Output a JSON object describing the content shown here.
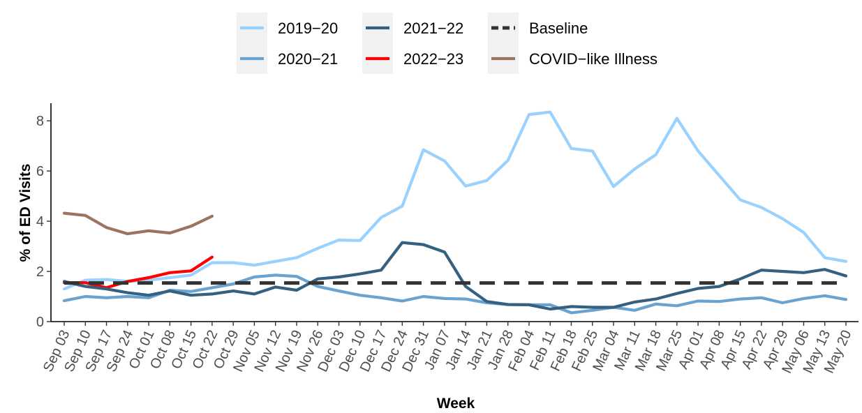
{
  "chart_data": {
    "type": "line",
    "xlabel": "Week",
    "ylabel": "% of ED Visits",
    "ylim": [
      0,
      8.7
    ],
    "yticks": [
      0,
      2,
      4,
      6,
      8
    ],
    "grid": false,
    "legend_position": "top",
    "categories": [
      "Sep 03",
      "Sep 10",
      "Sep 17",
      "Sep 24",
      "Oct 01",
      "Oct 08",
      "Oct 15",
      "Oct 22",
      "Oct 29",
      "Nov 05",
      "Nov 12",
      "Nov 19",
      "Nov 26",
      "Dec 03",
      "Dec 10",
      "Dec 17",
      "Dec 24",
      "Dec 31",
      "Jan 07",
      "Jan 14",
      "Jan 21",
      "Jan 28",
      "Feb 04",
      "Feb 11",
      "Feb 18",
      "Feb 25",
      "Mar 04",
      "Mar 11",
      "Mar 18",
      "Mar 25",
      "Apr 01",
      "Apr 08",
      "Apr 15",
      "Apr 22",
      "Apr 29",
      "May 06",
      "May 13",
      "May 20"
    ],
    "series": [
      {
        "name": "2019−20",
        "color": "#99d1ff",
        "dashed": false,
        "values": [
          1.3,
          1.65,
          1.68,
          1.6,
          1.65,
          1.75,
          1.85,
          2.35,
          2.35,
          2.25,
          2.4,
          2.55,
          2.92,
          3.25,
          3.23,
          4.15,
          4.6,
          6.85,
          6.4,
          5.4,
          5.62,
          6.42,
          8.25,
          8.35,
          6.9,
          6.8,
          5.38,
          6.08,
          6.65,
          8.1,
          6.8,
          5.82,
          4.85,
          4.55,
          4.1,
          3.55,
          2.55,
          2.4
        ]
      },
      {
        "name": "2020−21",
        "color": "#6aa2d0",
        "dashed": false,
        "values": [
          0.83,
          1.0,
          0.95,
          1.0,
          0.95,
          1.25,
          1.2,
          1.35,
          1.5,
          1.78,
          1.85,
          1.8,
          1.4,
          1.22,
          1.05,
          0.95,
          0.82,
          1.0,
          0.92,
          0.9,
          0.75,
          0.68,
          0.67,
          0.67,
          0.35,
          0.45,
          0.57,
          0.45,
          0.7,
          0.63,
          0.82,
          0.8,
          0.9,
          0.95,
          0.75,
          0.92,
          1.03,
          0.88
        ]
      },
      {
        "name": "2021−22",
        "color": "#36607f",
        "dashed": false,
        "values": [
          1.6,
          1.4,
          1.3,
          1.15,
          1.05,
          1.22,
          1.05,
          1.1,
          1.22,
          1.1,
          1.38,
          1.25,
          1.7,
          1.78,
          1.9,
          2.05,
          3.15,
          3.07,
          2.77,
          1.4,
          0.8,
          0.68,
          0.67,
          0.5,
          0.6,
          0.57,
          0.57,
          0.78,
          0.9,
          1.12,
          1.32,
          1.4,
          1.7,
          2.05,
          2.0,
          1.95,
          2.08,
          1.82
        ]
      },
      {
        "name": "2022−23",
        "color": "#ff0000",
        "dashed": false,
        "values": [
          1.55,
          1.55,
          1.35,
          1.6,
          1.75,
          1.95,
          2.02,
          2.57,
          null,
          null,
          null,
          null,
          null,
          null,
          null,
          null,
          null,
          null,
          null,
          null,
          null,
          null,
          null,
          null,
          null,
          null,
          null,
          null,
          null,
          null,
          null,
          null,
          null,
          null,
          null,
          null,
          null,
          null
        ]
      },
      {
        "name": "Baseline",
        "color": "#333333",
        "dashed": true,
        "values": [
          1.54,
          1.54,
          1.54,
          1.54,
          1.54,
          1.54,
          1.54,
          1.54,
          1.54,
          1.54,
          1.54,
          1.54,
          1.54,
          1.54,
          1.54,
          1.54,
          1.54,
          1.54,
          1.54,
          1.54,
          1.54,
          1.54,
          1.54,
          1.54,
          1.54,
          1.54,
          1.54,
          1.54,
          1.54,
          1.54,
          1.54,
          1.54,
          1.54,
          1.54,
          1.54,
          1.54,
          1.54,
          1.54
        ]
      },
      {
        "name": "COVID−like Illness",
        "color": "#9a7460",
        "dashed": false,
        "values": [
          4.32,
          4.23,
          3.75,
          3.5,
          3.62,
          3.53,
          3.8,
          4.2,
          null,
          null,
          null,
          null,
          null,
          null,
          null,
          null,
          null,
          null,
          null,
          null,
          null,
          null,
          null,
          null,
          null,
          null,
          null,
          null,
          null,
          null,
          null,
          null,
          null,
          null,
          null,
          null,
          null,
          null
        ]
      }
    ],
    "legend_order": [
      "2019−20",
      "2021−22",
      "Baseline",
      "2020−21",
      "2022−23",
      "COVID−like Illness"
    ]
  }
}
